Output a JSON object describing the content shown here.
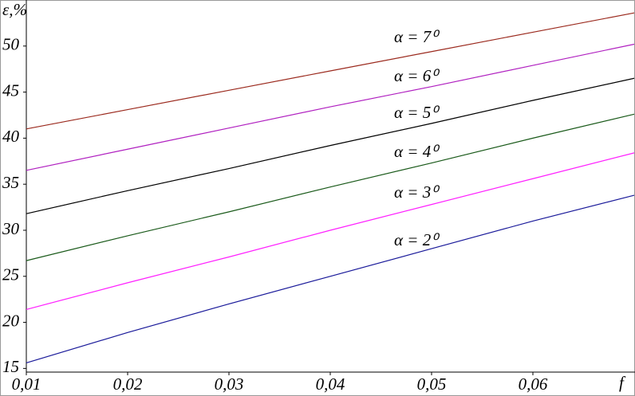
{
  "chart_data": {
    "type": "line",
    "y_label": "ε,%",
    "x_label": "f",
    "x": [
      0.01,
      0.02,
      0.03,
      0.04,
      0.05,
      0.06,
      0.07
    ],
    "series": [
      {
        "name": "α = 7⁰",
        "color": "#9b2a1e",
        "values": [
          41.0,
          43.1,
          45.2,
          47.3,
          49.4,
          51.5,
          53.6
        ]
      },
      {
        "name": "α = 6⁰",
        "color": "#b020c0",
        "values": [
          36.5,
          38.8,
          41.1,
          43.4,
          45.6,
          47.9,
          50.2
        ]
      },
      {
        "name": "α = 5⁰",
        "color": "#000000",
        "values": [
          31.8,
          34.3,
          36.7,
          39.2,
          41.6,
          44.1,
          46.5
        ]
      },
      {
        "name": "α = 4⁰",
        "color": "#1a5a1a",
        "values": [
          26.7,
          29.4,
          32.0,
          34.7,
          37.3,
          40.0,
          42.6
        ]
      },
      {
        "name": "α = 3⁰",
        "color": "#ff20ff",
        "values": [
          21.4,
          24.3,
          27.1,
          30.0,
          32.8,
          35.6,
          38.4
        ]
      },
      {
        "name": "α = 2⁰",
        "color": "#1a1a9a",
        "values": [
          15.6,
          18.9,
          22.0,
          25.0,
          28.0,
          31.0,
          33.8
        ]
      }
    ],
    "xlim": [
      0.01,
      0.07
    ],
    "ylim": [
      14.6,
      55
    ],
    "xticks": [
      {
        "value": 0.01,
        "label": "0,01"
      },
      {
        "value": 0.02,
        "label": "0,02"
      },
      {
        "value": 0.03,
        "label": "0,03"
      },
      {
        "value": 0.04,
        "label": "0,04"
      },
      {
        "value": 0.05,
        "label": "0,05"
      },
      {
        "value": 0.06,
        "label": "0,06"
      }
    ],
    "yticks": [
      15,
      20,
      25,
      30,
      35,
      40,
      45,
      50
    ]
  }
}
